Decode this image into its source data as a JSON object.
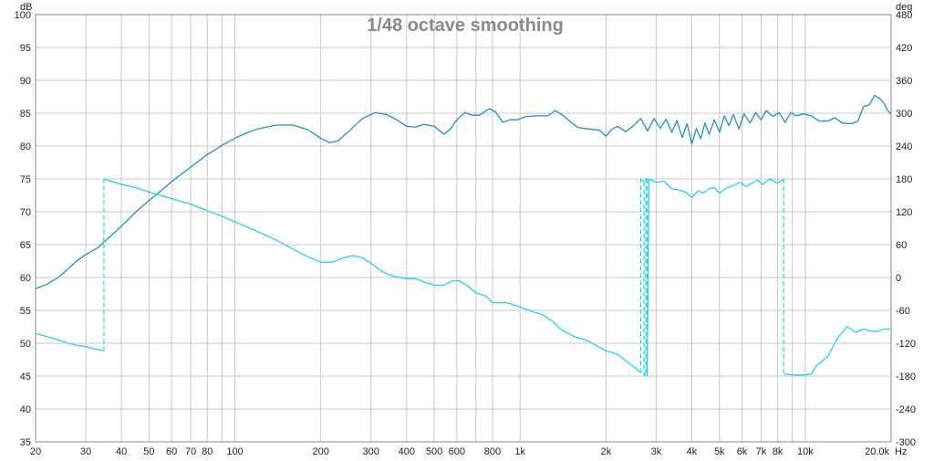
{
  "chart_data": {
    "type": "line",
    "title": "1/48 octave smoothing",
    "x_unit": "Hz",
    "y_left_unit": "dB",
    "y_right_unit": "deg",
    "x_scale": "log",
    "xlim": [
      20,
      20000
    ],
    "ylim_left": [
      35,
      100
    ],
    "ylim_right": [
      -300,
      480
    ],
    "grid": true,
    "x_ticks": [
      {
        "v": 20,
        "label": "20"
      },
      {
        "v": 30,
        "label": "30"
      },
      {
        "v": 40,
        "label": "40"
      },
      {
        "v": 50,
        "label": "50"
      },
      {
        "v": 60,
        "label": "60"
      },
      {
        "v": 70,
        "label": "70"
      },
      {
        "v": 80,
        "label": "80"
      },
      {
        "v": 100,
        "label": "100"
      },
      {
        "v": 200,
        "label": "200"
      },
      {
        "v": 300,
        "label": "300"
      },
      {
        "v": 400,
        "label": "400"
      },
      {
        "v": 500,
        "label": "500"
      },
      {
        "v": 600,
        "label": "600"
      },
      {
        "v": 800,
        "label": "800"
      },
      {
        "v": 1000,
        "label": "1k"
      },
      {
        "v": 2000,
        "label": "2k"
      },
      {
        "v": 3000,
        "label": "3k"
      },
      {
        "v": 4000,
        "label": "4k"
      },
      {
        "v": 5000,
        "label": "5k"
      },
      {
        "v": 6000,
        "label": "6k"
      },
      {
        "v": 7000,
        "label": "7k"
      },
      {
        "v": 8000,
        "label": "8k"
      },
      {
        "v": 10000,
        "label": "10k"
      },
      {
        "v": 20000,
        "label": "20.0k"
      }
    ],
    "x_grid_minor": [
      90,
      700,
      9000
    ],
    "y_left_ticks": [
      35,
      40,
      45,
      50,
      55,
      60,
      65,
      70,
      75,
      80,
      85,
      90,
      95,
      100
    ],
    "y_right_ticks": [
      -300,
      -240,
      -180,
      -120,
      -60,
      0,
      60,
      120,
      180,
      240,
      300,
      360,
      420,
      480
    ],
    "colors": {
      "magnitude": "#1f93be",
      "phase": "#22d3e6",
      "grid": "#c9c9c9",
      "axis": "#888888"
    },
    "series": [
      {
        "axis": "left",
        "points": [
          [
            20,
            58.3
          ],
          [
            22,
            59.0
          ],
          [
            24,
            60.0
          ],
          [
            26,
            61.3
          ],
          [
            28,
            62.6
          ],
          [
            30,
            63.5
          ],
          [
            33,
            64.5
          ],
          [
            36,
            66.0
          ],
          [
            40,
            67.8
          ],
          [
            45,
            70.0
          ],
          [
            50,
            71.7
          ],
          [
            55,
            73.2
          ],
          [
            60,
            74.6
          ],
          [
            70,
            76.8
          ],
          [
            80,
            78.7
          ],
          [
            90,
            80.1
          ],
          [
            100,
            81.2
          ],
          [
            110,
            82.0
          ],
          [
            120,
            82.6
          ],
          [
            140,
            83.2
          ],
          [
            160,
            83.2
          ],
          [
            180,
            82.5
          ],
          [
            200,
            81.2
          ],
          [
            215,
            80.5
          ],
          [
            230,
            80.8
          ],
          [
            250,
            82.2
          ],
          [
            280,
            84.2
          ],
          [
            310,
            85.1
          ],
          [
            340,
            84.8
          ],
          [
            370,
            84.0
          ],
          [
            400,
            83.0
          ],
          [
            430,
            82.9
          ],
          [
            460,
            83.3
          ],
          [
            500,
            83.0
          ],
          [
            540,
            81.8
          ],
          [
            570,
            82.6
          ],
          [
            600,
            84.0
          ],
          [
            640,
            85.1
          ],
          [
            680,
            84.7
          ],
          [
            720,
            84.7
          ],
          [
            780,
            85.7
          ],
          [
            820,
            85.2
          ],
          [
            870,
            83.6
          ],
          [
            920,
            84.0
          ],
          [
            980,
            84.0
          ],
          [
            1050,
            84.5
          ],
          [
            1150,
            84.6
          ],
          [
            1250,
            84.6
          ],
          [
            1330,
            85.4
          ],
          [
            1400,
            84.8
          ],
          [
            1500,
            83.7
          ],
          [
            1600,
            82.8
          ],
          [
            1750,
            82.6
          ],
          [
            1900,
            82.4
          ],
          [
            2000,
            81.5
          ],
          [
            2100,
            82.6
          ],
          [
            2200,
            83.0
          ],
          [
            2350,
            82.2
          ],
          [
            2500,
            83.1
          ],
          [
            2650,
            84.2
          ],
          [
            2800,
            82.3
          ],
          [
            2950,
            84.2
          ],
          [
            3100,
            82.7
          ],
          [
            3250,
            84.1
          ],
          [
            3400,
            82.1
          ],
          [
            3550,
            83.9
          ],
          [
            3700,
            81.3
          ],
          [
            3850,
            83.4
          ],
          [
            4000,
            80.3
          ],
          [
            4150,
            82.7
          ],
          [
            4300,
            81.1
          ],
          [
            4450,
            83.5
          ],
          [
            4600,
            81.8
          ],
          [
            4800,
            84.0
          ],
          [
            5000,
            82.1
          ],
          [
            5200,
            84.6
          ],
          [
            5400,
            83.1
          ],
          [
            5600,
            84.8
          ],
          [
            5850,
            82.6
          ],
          [
            6100,
            84.9
          ],
          [
            6400,
            83.5
          ],
          [
            6700,
            85.1
          ],
          [
            7000,
            84.0
          ],
          [
            7300,
            85.4
          ],
          [
            7700,
            84.5
          ],
          [
            8100,
            85.1
          ],
          [
            8500,
            83.6
          ],
          [
            8900,
            85.1
          ],
          [
            9300,
            84.6
          ],
          [
            9800,
            84.9
          ],
          [
            10500,
            84.6
          ],
          [
            11200,
            83.8
          ],
          [
            12000,
            83.8
          ],
          [
            12700,
            84.3
          ],
          [
            13500,
            83.5
          ],
          [
            14500,
            83.4
          ],
          [
            15300,
            83.8
          ],
          [
            16000,
            86.0
          ],
          [
            16800,
            86.3
          ],
          [
            17500,
            87.7
          ],
          [
            18200,
            87.3
          ],
          [
            18900,
            86.5
          ],
          [
            19500,
            85.3
          ],
          [
            20000,
            84.9
          ]
        ]
      },
      {
        "axis": "right",
        "points": [
          [
            20,
            -102
          ],
          [
            22,
            -108
          ],
          [
            24,
            -114
          ],
          [
            26,
            -120
          ],
          [
            28,
            -124
          ],
          [
            30,
            -126
          ],
          [
            32,
            -130
          ],
          [
            34.7,
            -134
          ],
          [
            34.7,
            180
          ],
          [
            40,
            170
          ],
          [
            45,
            164
          ],
          [
            50,
            156
          ],
          [
            60,
            144
          ],
          [
            70,
            134
          ],
          [
            80,
            122
          ],
          [
            90,
            112
          ],
          [
            100,
            102
          ],
          [
            120,
            84
          ],
          [
            140,
            68
          ],
          [
            160,
            52
          ],
          [
            180,
            38
          ],
          [
            200,
            28
          ],
          [
            220,
            28
          ],
          [
            240,
            36
          ],
          [
            260,
            40
          ],
          [
            280,
            36
          ],
          [
            300,
            26
          ],
          [
            330,
            10
          ],
          [
            360,
            2
          ],
          [
            400,
            -2
          ],
          [
            430,
            -2
          ],
          [
            460,
            -8
          ],
          [
            500,
            -14
          ],
          [
            540,
            -14
          ],
          [
            580,
            -6
          ],
          [
            610,
            -6
          ],
          [
            650,
            -14
          ],
          [
            700,
            -28
          ],
          [
            760,
            -34
          ],
          [
            800,
            -46
          ],
          [
            850,
            -46
          ],
          [
            900,
            -46
          ],
          [
            950,
            -50
          ],
          [
            1000,
            -54
          ],
          [
            1100,
            -62
          ],
          [
            1200,
            -68
          ],
          [
            1300,
            -80
          ],
          [
            1400,
            -96
          ],
          [
            1550,
            -108
          ],
          [
            1700,
            -114
          ],
          [
            1850,
            -124
          ],
          [
            2000,
            -134
          ],
          [
            2200,
            -140
          ],
          [
            2400,
            -156
          ],
          [
            2550,
            -166
          ],
          [
            2650,
            -174
          ],
          [
            2650,
            180
          ],
          [
            2720,
            174
          ],
          [
            2720,
            -180
          ],
          [
            2760,
            -174
          ],
          [
            2760,
            180
          ],
          [
            2790,
            180
          ],
          [
            2790,
            -180
          ],
          [
            2830,
            180
          ],
          [
            3000,
            174
          ],
          [
            3200,
            176
          ],
          [
            3400,
            162
          ],
          [
            3600,
            160
          ],
          [
            3800,
            156
          ],
          [
            4000,
            146
          ],
          [
            4200,
            158
          ],
          [
            4400,
            154
          ],
          [
            4600,
            162
          ],
          [
            4800,
            164
          ],
          [
            5000,
            154
          ],
          [
            5300,
            164
          ],
          [
            5600,
            168
          ],
          [
            5900,
            174
          ],
          [
            6200,
            166
          ],
          [
            6500,
            172
          ],
          [
            6800,
            178
          ],
          [
            7100,
            170
          ],
          [
            7500,
            180
          ],
          [
            8000,
            172
          ],
          [
            8400,
            180
          ],
          [
            8400,
            -176
          ],
          [
            9000,
            -178
          ],
          [
            9500,
            -178
          ],
          [
            10000,
            -178
          ],
          [
            10500,
            -176
          ],
          [
            11000,
            -160
          ],
          [
            12000,
            -144
          ],
          [
            13000,
            -110
          ],
          [
            14000,
            -90
          ],
          [
            15000,
            -100
          ],
          [
            16000,
            -94
          ],
          [
            17000,
            -98
          ],
          [
            18000,
            -98
          ],
          [
            19000,
            -94
          ],
          [
            20000,
            -94
          ]
        ]
      }
    ]
  }
}
